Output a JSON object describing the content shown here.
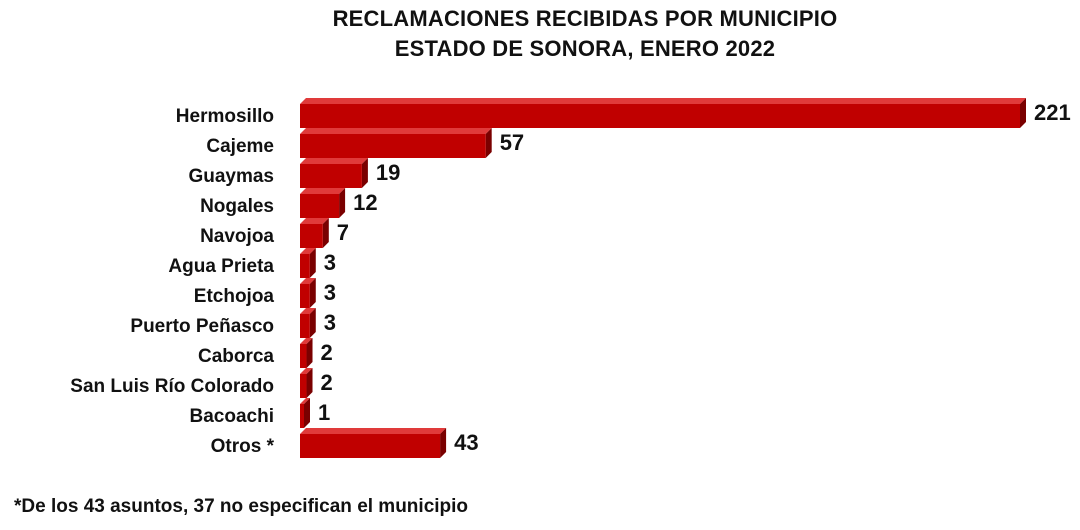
{
  "chart_data": {
    "type": "bar",
    "orientation": "horizontal",
    "title": "RECLAMACIONES RECIBIDAS POR MUNICIPIO",
    "subtitle": "ESTADO DE SONORA, ENERO 2022",
    "categories": [
      "Hermosillo",
      "Cajeme",
      "Guaymas",
      "Nogales",
      "Navojoa",
      "Agua Prieta",
      "Etchojoa",
      "Puerto Peñasco",
      "Caborca",
      "San Luis Río Colorado",
      "Bacoachi",
      "Otros *"
    ],
    "values": [
      221,
      57,
      19,
      12,
      7,
      3,
      3,
      3,
      2,
      2,
      1,
      43
    ],
    "data_labels": [
      "221",
      "57",
      "19",
      "12",
      "7",
      "3",
      "3",
      "3",
      "2",
      "2",
      "1",
      "43"
    ],
    "xlabel": "",
    "ylabel": "",
    "xlim": [
      0,
      221
    ],
    "grid": false,
    "legend": "none",
    "bar_style": "3d",
    "colors": {
      "bar_front": "#c00000",
      "bar_top": "#e03a3a",
      "bar_side": "#7a0000",
      "text": "#111111"
    }
  },
  "footnote": "*De los 43 asuntos, 37 no especifican el municipio"
}
